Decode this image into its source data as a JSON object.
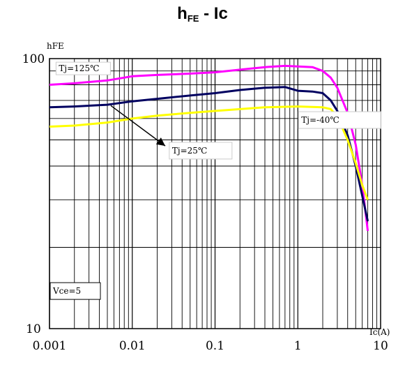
{
  "title": {
    "main": "h",
    "sub": "FE",
    "rest": " - Ic"
  },
  "chart_data": {
    "type": "line",
    "title": "hFE - Ic",
    "ylabel": "hFE",
    "xlabel": "Ic(A)",
    "x_scale": "log",
    "y_scale": "log",
    "xlim": [
      0.001,
      10
    ],
    "ylim": [
      10,
      100
    ],
    "x_ticks": [
      "0.001",
      "0.01",
      "0.1",
      "1",
      "10"
    ],
    "y_ticks": [
      "10",
      "100"
    ],
    "grid": true,
    "series": [
      {
        "name": "Tj=125℃",
        "color": "#ff00ff",
        "points": [
          [
            0.001,
            80
          ],
          [
            0.002,
            81
          ],
          [
            0.005,
            83
          ],
          [
            0.01,
            86
          ],
          [
            0.02,
            87
          ],
          [
            0.05,
            88
          ],
          [
            0.1,
            89
          ],
          [
            0.2,
            91
          ],
          [
            0.4,
            93
          ],
          [
            0.7,
            94
          ],
          [
            1,
            93.5
          ],
          [
            1.5,
            93
          ],
          [
            2,
            90
          ],
          [
            2.5,
            85
          ],
          [
            3,
            78
          ],
          [
            4,
            63
          ],
          [
            5,
            48
          ],
          [
            6,
            34
          ],
          [
            7,
            23
          ]
        ]
      },
      {
        "name": "Tj=25℃",
        "color": "#000060",
        "points": [
          [
            0.001,
            66
          ],
          [
            0.002,
            66.5
          ],
          [
            0.005,
            67.5
          ],
          [
            0.01,
            69.5
          ],
          [
            0.02,
            71
          ],
          [
            0.05,
            73
          ],
          [
            0.1,
            74.5
          ],
          [
            0.2,
            76.5
          ],
          [
            0.4,
            78
          ],
          [
            0.7,
            78.5
          ],
          [
            1,
            76
          ],
          [
            1.5,
            75.5
          ],
          [
            2,
            74.5
          ],
          [
            2.5,
            70
          ],
          [
            3,
            64
          ],
          [
            4,
            52
          ],
          [
            5,
            40
          ],
          [
            6,
            31
          ],
          [
            7,
            25
          ]
        ]
      },
      {
        "name": "Tj=-40℃",
        "color": "#ffff00",
        "points": [
          [
            0.001,
            56
          ],
          [
            0.002,
            56.5
          ],
          [
            0.005,
            58
          ],
          [
            0.01,
            60
          ],
          [
            0.02,
            61.5
          ],
          [
            0.05,
            63
          ],
          [
            0.1,
            64
          ],
          [
            0.2,
            65
          ],
          [
            0.4,
            66
          ],
          [
            1,
            66.5
          ],
          [
            2,
            66
          ],
          [
            2.5,
            65
          ],
          [
            3,
            61
          ],
          [
            4,
            50
          ],
          [
            5,
            41
          ],
          [
            6,
            34
          ],
          [
            7,
            30
          ]
        ]
      }
    ],
    "annotations": [
      {
        "text": "Tj=125℃"
      },
      {
        "text": "Tj=-40℃"
      },
      {
        "text": "Tj=25℃"
      },
      {
        "text": "Vce=5"
      }
    ]
  }
}
